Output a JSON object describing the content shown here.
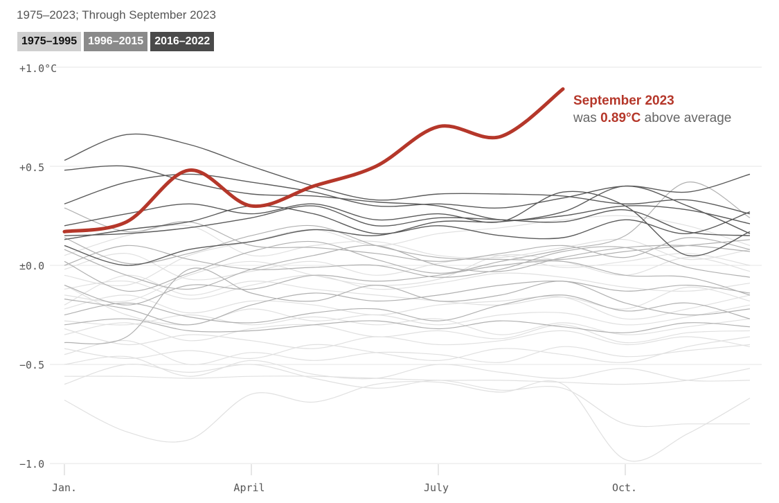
{
  "subtitle": "1975–2023; Through September 2023",
  "legend": [
    {
      "label": "1975–1995",
      "bg": "#cfcfcf",
      "color": "#111111"
    },
    {
      "label": "1996–2015",
      "bg": "#8a8a8a",
      "color": "#ffffff"
    },
    {
      "label": "2016–2022",
      "bg": "#4a4a4a",
      "color": "#ffffff"
    }
  ],
  "colors": {
    "highlight": "#b5372a",
    "era1": "#e0e0e0",
    "era2": "#b0b0b0",
    "era3": "#5a5a5a",
    "grid": "#e4e4e4"
  },
  "annotation": {
    "title": "September 2023",
    "prefix": "was ",
    "value": "0.89°C",
    "suffix": " above average"
  },
  "chart_data": {
    "type": "line",
    "title": "",
    "xlabel": "",
    "ylabel": "",
    "ylim": [
      -1.0,
      1.0
    ],
    "yticks": [
      1.0,
      0.5,
      0.0,
      -0.5,
      -1.0
    ],
    "ytick_labels": [
      "+1.0°C",
      "+0.5",
      "±0.0",
      "−0.5",
      "−1.0"
    ],
    "x_months": [
      1,
      2,
      3,
      4,
      5,
      6,
      7,
      8,
      9,
      10,
      11,
      12
    ],
    "xticks": [
      1,
      4,
      7,
      10
    ],
    "xtick_labels": [
      "Jan.",
      "April",
      "July",
      "Oct."
    ],
    "highlight": {
      "name": "2023",
      "values": [
        0.17,
        0.22,
        0.48,
        0.3,
        0.4,
        0.5,
        0.7,
        0.65,
        0.89
      ]
    },
    "series": [
      {
        "era": 3,
        "values": [
          0.53,
          0.66,
          0.61,
          0.5,
          0.4,
          0.33,
          0.36,
          0.36,
          0.35,
          0.31,
          0.33,
          0.26
        ]
      },
      {
        "era": 3,
        "values": [
          0.48,
          0.5,
          0.42,
          0.36,
          0.35,
          0.32,
          0.3,
          0.23,
          0.25,
          0.3,
          0.28,
          0.21
        ]
      },
      {
        "era": 3,
        "values": [
          0.31,
          0.42,
          0.46,
          0.42,
          0.37,
          0.3,
          0.31,
          0.29,
          0.34,
          0.4,
          0.37,
          0.46
        ]
      },
      {
        "era": 3,
        "values": [
          0.2,
          0.26,
          0.31,
          0.26,
          0.31,
          0.23,
          0.26,
          0.22,
          0.37,
          0.3,
          0.05,
          0.17
        ]
      },
      {
        "era": 3,
        "values": [
          0.15,
          0.16,
          0.19,
          0.24,
          0.3,
          0.2,
          0.24,
          0.23,
          0.22,
          0.28,
          0.17,
          0.15
        ]
      },
      {
        "era": 3,
        "values": [
          0.13,
          0.18,
          0.22,
          0.3,
          0.26,
          0.16,
          0.2,
          0.15,
          0.14,
          0.23,
          0.16,
          0.27
        ]
      },
      {
        "era": 3,
        "values": [
          0.1,
          0.0,
          0.08,
          0.12,
          0.18,
          0.15,
          0.22,
          0.22,
          0.27,
          0.4,
          0.3,
          0.16
        ]
      },
      {
        "era": 2,
        "values": [
          0.29,
          0.17,
          0.22,
          0.1,
          0.09,
          0.06,
          0.02,
          0.06,
          0.1,
          0.04,
          0.14,
          0.08
        ]
      },
      {
        "era": 2,
        "values": [
          0.14,
          0.01,
          0.06,
          0.15,
          0.2,
          0.1,
          0.04,
          0.03,
          0.03,
          0.07,
          0.1,
          0.13
        ]
      },
      {
        "era": 2,
        "values": [
          0.08,
          -0.05,
          -0.12,
          -0.02,
          0.05,
          0.1,
          0.0,
          -0.03,
          0.04,
          0.09,
          0.1,
          0.07
        ]
      },
      {
        "era": 2,
        "values": [
          0.02,
          -0.13,
          -0.04,
          0.07,
          0.12,
          0.03,
          -0.04,
          0.02,
          0.08,
          0.15,
          0.42,
          0.24
        ]
      },
      {
        "era": 2,
        "values": [
          -0.1,
          -0.2,
          -0.1,
          -0.12,
          -0.05,
          -0.08,
          -0.05,
          0.0,
          0.02,
          -0.05,
          -0.06,
          -0.15
        ]
      },
      {
        "era": 2,
        "values": [
          -0.17,
          -0.22,
          -0.3,
          -0.2,
          -0.14,
          -0.18,
          -0.15,
          -0.1,
          -0.08,
          -0.13,
          -0.1,
          -0.14
        ]
      },
      {
        "era": 2,
        "values": [
          -0.25,
          -0.19,
          -0.26,
          -0.29,
          -0.24,
          -0.22,
          -0.28,
          -0.2,
          -0.15,
          -0.23,
          -0.19,
          -0.27
        ]
      },
      {
        "era": 2,
        "values": [
          -0.39,
          -0.36,
          -0.02,
          -0.14,
          -0.18,
          -0.1,
          -0.18,
          -0.15,
          -0.08,
          -0.19,
          -0.25,
          -0.22
        ]
      },
      {
        "era": 2,
        "values": [
          -0.3,
          -0.27,
          -0.33,
          -0.33,
          -0.3,
          -0.28,
          -0.32,
          -0.28,
          -0.31,
          -0.34,
          -0.29,
          -0.31
        ]
      },
      {
        "era": 2,
        "values": [
          0.0,
          0.1,
          0.03,
          -0.02,
          -0.01,
          0.0,
          -0.06,
          -0.02,
          0.07,
          0.09,
          -0.01,
          -0.06
        ]
      },
      {
        "era": 1,
        "values": [
          -0.05,
          -0.1,
          0.05,
          0.12,
          0.18,
          0.1,
          0.16,
          0.19,
          0.23,
          0.25,
          0.2,
          0.1
        ]
      },
      {
        "era": 1,
        "values": [
          -0.15,
          -0.18,
          -0.05,
          0.02,
          -0.05,
          -0.1,
          -0.07,
          0.05,
          0.02,
          -0.05,
          0.04,
          -0.03
        ]
      },
      {
        "era": 1,
        "values": [
          -0.2,
          -0.05,
          -0.15,
          -0.08,
          -0.12,
          -0.15,
          -0.18,
          -0.2,
          -0.16,
          -0.22,
          -0.11,
          -0.18
        ]
      },
      {
        "era": 1,
        "values": [
          -0.28,
          -0.3,
          -0.25,
          -0.3,
          -0.26,
          -0.3,
          -0.27,
          -0.35,
          -0.29,
          -0.35,
          -0.31,
          -0.27
        ]
      },
      {
        "era": 1,
        "values": [
          -0.32,
          -0.4,
          -0.35,
          -0.38,
          -0.42,
          -0.36,
          -0.4,
          -0.38,
          -0.33,
          -0.4,
          -0.36,
          -0.41
        ]
      },
      {
        "era": 1,
        "values": [
          -0.45,
          -0.38,
          -0.5,
          -0.44,
          -0.48,
          -0.44,
          -0.45,
          -0.49,
          -0.41,
          -0.46,
          -0.43,
          -0.4
        ]
      },
      {
        "era": 1,
        "values": [
          -0.5,
          -0.46,
          -0.56,
          -0.48,
          -0.55,
          -0.57,
          -0.5,
          -0.54,
          -0.57,
          -0.52,
          -0.58,
          -0.58
        ]
      },
      {
        "era": 1,
        "values": [
          -0.56,
          -0.56,
          -0.57,
          -0.56,
          -0.56,
          -0.57,
          -0.58,
          -0.58,
          -0.59,
          -0.6,
          -0.58,
          -0.52
        ]
      },
      {
        "era": 1,
        "values": [
          -0.68,
          -0.84,
          -0.88,
          -0.65,
          -0.69,
          -0.6,
          -0.59,
          -0.64,
          -0.6,
          -0.98,
          -0.85,
          -0.67
        ]
      },
      {
        "era": 1,
        "values": [
          -0.6,
          -0.5,
          -0.54,
          -0.5,
          -0.57,
          -0.62,
          -0.58,
          -0.63,
          -0.62,
          -0.8,
          -0.8,
          -0.8
        ]
      },
      {
        "era": 1,
        "values": [
          -0.1,
          -0.25,
          -0.3,
          -0.22,
          -0.28,
          -0.25,
          -0.3,
          -0.25,
          -0.24,
          -0.3,
          -0.26,
          -0.2
        ]
      },
      {
        "era": 1,
        "values": [
          0.05,
          0.15,
          0.2,
          0.05,
          0.1,
          0.12,
          0.05,
          0.04,
          0.09,
          0.13,
          0.03,
          0.08
        ]
      },
      {
        "era": 1,
        "values": [
          -0.22,
          -0.15,
          -0.24,
          -0.18,
          -0.2,
          -0.25,
          -0.2,
          -0.18,
          -0.16,
          -0.27,
          -0.22,
          -0.15
        ]
      },
      {
        "era": 1,
        "values": [
          -0.35,
          -0.29,
          -0.38,
          -0.32,
          -0.3,
          -0.36,
          -0.33,
          -0.37,
          -0.3,
          -0.39,
          -0.34,
          -0.33
        ]
      },
      {
        "era": 1,
        "values": [
          -0.12,
          -0.08,
          -0.17,
          -0.1,
          -0.05,
          -0.12,
          -0.09,
          -0.04,
          -0.06,
          -0.11,
          -0.13,
          -0.09
        ]
      },
      {
        "era": 1,
        "values": [
          -0.42,
          -0.47,
          -0.43,
          -0.47,
          -0.4,
          -0.44,
          -0.48,
          -0.42,
          -0.45,
          -0.49,
          -0.41,
          -0.36
        ]
      },
      {
        "era": 1,
        "values": [
          -0.02,
          0.06,
          -0.07,
          -0.03,
          0.02,
          -0.05,
          0.01,
          0.05,
          -0.01,
          0.02,
          0.06,
          0.0
        ]
      }
    ]
  }
}
